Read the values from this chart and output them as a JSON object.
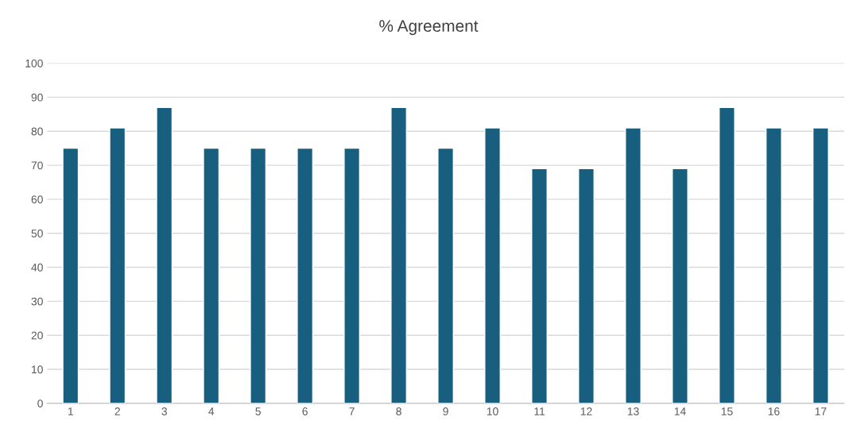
{
  "chart_data": {
    "type": "bar",
    "title": "% Agreement",
    "categories": [
      "1",
      "2",
      "3",
      "4",
      "5",
      "6",
      "7",
      "8",
      "9",
      "10",
      "11",
      "12",
      "13",
      "14",
      "15",
      "16",
      "17"
    ],
    "values": [
      75,
      81,
      87,
      75,
      75,
      75,
      75,
      87,
      75,
      81,
      69,
      69,
      81,
      69,
      87,
      81,
      81
    ],
    "color": "#175e7f",
    "ylim": [
      0,
      100
    ],
    "yticks": [
      0,
      10,
      20,
      30,
      40,
      50,
      60,
      70,
      80,
      90,
      100
    ],
    "grid": "y"
  }
}
